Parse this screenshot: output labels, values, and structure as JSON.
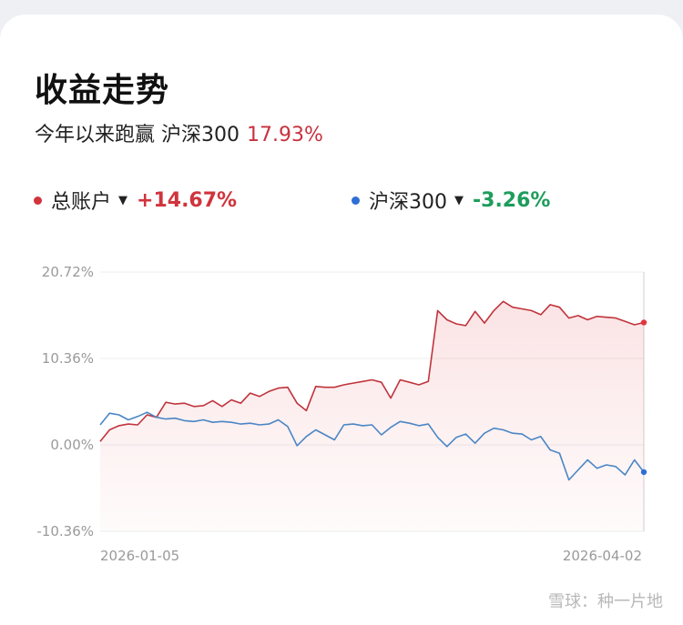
{
  "header": {
    "title": "收益走势",
    "subtitle_text": "今年以来跑赢 沪深300",
    "subtitle_value": "17.93%"
  },
  "legend": [
    {
      "name": "总账户",
      "value": "+14.67%",
      "color": "#d0343c",
      "caret": "▼"
    },
    {
      "name": "沪深300",
      "value": "-3.26%",
      "color": "#2f6fd6",
      "value_color": "#1d9d5c",
      "caret": "▼"
    }
  ],
  "watermark": "雪球：种一片地",
  "chart_data": {
    "type": "line",
    "y_ticks": [
      "20.72%",
      "10.36%",
      "0.00%",
      "-10.36%"
    ],
    "ylim": [
      -10.36,
      20.72
    ],
    "x_tick_labels": [
      "2026-01-05",
      "2026-04-02"
    ],
    "series": [
      {
        "name": "总账户",
        "color": "#c0343c",
        "values": [
          0.4,
          1.8,
          2.3,
          2.5,
          2.4,
          3.6,
          3.3,
          5.1,
          4.9,
          5.0,
          4.6,
          4.7,
          5.3,
          4.6,
          5.4,
          5.0,
          6.2,
          5.8,
          6.4,
          6.8,
          6.9,
          5.0,
          4.1,
          7.0,
          6.9,
          6.9,
          7.2,
          7.4,
          7.6,
          7.8,
          7.5,
          5.6,
          7.8,
          7.5,
          7.2,
          7.6,
          16.1,
          15.0,
          14.5,
          14.3,
          16.0,
          14.6,
          16.1,
          17.2,
          16.5,
          16.3,
          16.1,
          15.6,
          16.8,
          16.5,
          15.2,
          15.5,
          15.0,
          15.4,
          15.3,
          15.2,
          14.8,
          14.4,
          14.67
        ]
      },
      {
        "name": "沪深300",
        "color": "#4a86c5",
        "values": [
          2.4,
          3.8,
          3.6,
          3.0,
          3.4,
          3.9,
          3.3,
          3.1,
          3.2,
          2.9,
          2.8,
          3.0,
          2.7,
          2.8,
          2.7,
          2.5,
          2.6,
          2.4,
          2.5,
          3.0,
          2.2,
          -0.1,
          1.0,
          1.8,
          1.2,
          0.6,
          2.4,
          2.5,
          2.3,
          2.4,
          1.2,
          2.1,
          2.8,
          2.6,
          2.3,
          2.5,
          0.9,
          -0.2,
          0.9,
          1.3,
          0.2,
          1.4,
          2.0,
          1.8,
          1.4,
          1.3,
          0.6,
          1.0,
          -0.6,
          -1.0,
          -4.2,
          -3.0,
          -1.8,
          -2.8,
          -2.4,
          -2.6,
          -3.6,
          -1.8,
          -3.26
        ]
      }
    ],
    "grid": true,
    "fill_area": "总账户"
  }
}
